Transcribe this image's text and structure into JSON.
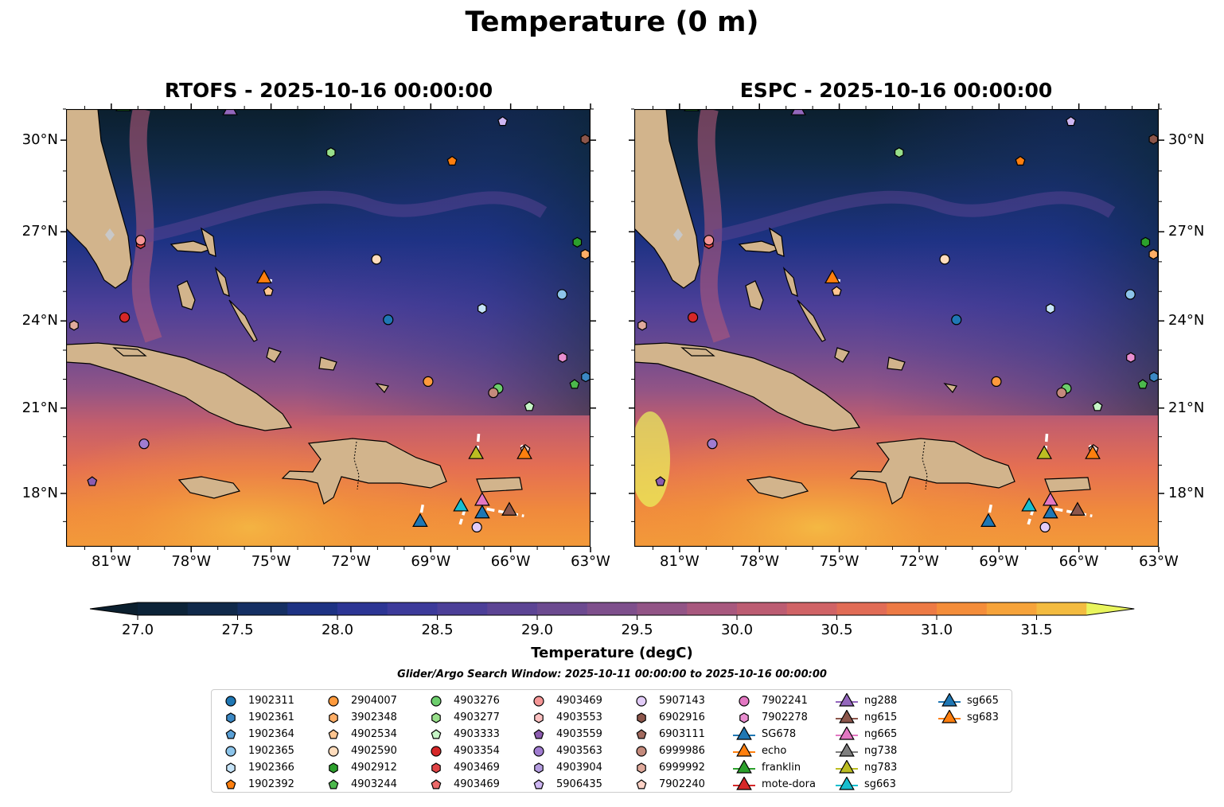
{
  "chart_data": {
    "type": "map-contour",
    "title": "Temperature (0 m)",
    "panels": [
      {
        "title": "RTOFS - 2025-10-16 00:00:00",
        "model": "RTOFS"
      },
      {
        "title": "ESPC - 2025-10-16 00:00:00",
        "model": "ESPC"
      }
    ],
    "lon_range": [
      -82.7,
      -63
    ],
    "lat_range": [
      16.1,
      31.0
    ],
    "x_ticks": [
      "81°W",
      "78°W",
      "75°W",
      "72°W",
      "69°W",
      "66°W",
      "63°W"
    ],
    "x_tick_values": [
      -81,
      -78,
      -75,
      -72,
      -69,
      -66,
      -63
    ],
    "y_ticks": [
      "30°N",
      "27°N",
      "24°N",
      "21°N",
      "18°N"
    ],
    "y_tick_values": [
      30,
      27,
      24,
      21,
      18
    ],
    "colorbar": {
      "label": "Temperature (degC)",
      "range": [
        27.0,
        31.75
      ],
      "step": 0.25,
      "extend": "both",
      "ticks": [
        "27.0",
        "27.5",
        "28.0",
        "28.5",
        "29.0",
        "29.5",
        "30.0",
        "30.5",
        "31.0",
        "31.5"
      ],
      "tick_values": [
        27.0,
        27.5,
        28.0,
        28.5,
        29.0,
        29.5,
        30.0,
        30.5,
        31.0,
        31.5
      ],
      "colors": [
        "#0b1f2e",
        "#0c2338",
        "#10294a",
        "#152f63",
        "#1d3283",
        "#2c3594",
        "#3c3a9a",
        "#4c3f98",
        "#5c4494",
        "#6c4a90",
        "#7e4f8c",
        "#925486",
        "#a8587e",
        "#bc5c72",
        "#d06366",
        "#e16c56",
        "#ed7a45",
        "#f48d3a",
        "#f6a33a",
        "#f3bb40",
        "#e9f55d"
      ]
    },
    "search_window": "Glider/Argo Search Window: 2025-10-11 00:00:00 to 2025-10-16 00:00:00",
    "legend": [
      {
        "label": "1902311",
        "shape": "circle",
        "color": "#1f77b4"
      },
      {
        "label": "1902361",
        "shape": "hexagon",
        "color": "#3b88c4"
      },
      {
        "label": "1902364",
        "shape": "pentagon",
        "color": "#5aa0d6"
      },
      {
        "label": "1902365",
        "shape": "circle",
        "color": "#8cc4ea"
      },
      {
        "label": "1902366",
        "shape": "hexagon",
        "color": "#c6e4f8"
      },
      {
        "label": "1902392",
        "shape": "pentagon",
        "color": "#ff7f0e"
      },
      {
        "label": "2904007",
        "shape": "circle",
        "color": "#ff9a3c"
      },
      {
        "label": "3902348",
        "shape": "hexagon",
        "color": "#ffae66"
      },
      {
        "label": "4902534",
        "shape": "pentagon",
        "color": "#ffc590"
      },
      {
        "label": "4902590",
        "shape": "circle",
        "color": "#ffdcbc"
      },
      {
        "label": "4902912",
        "shape": "hexagon",
        "color": "#2ca02c"
      },
      {
        "label": "4903244",
        "shape": "pentagon",
        "color": "#4cb84c"
      },
      {
        "label": "4903276",
        "shape": "circle",
        "color": "#6cce6c"
      },
      {
        "label": "4903277",
        "shape": "hexagon",
        "color": "#98df8a"
      },
      {
        "label": "4903333",
        "shape": "pentagon",
        "color": "#c6f5c6"
      },
      {
        "label": "4903354",
        "shape": "circle",
        "color": "#d62728"
      },
      {
        "label": "4903469",
        "shape": "hexagon",
        "color": "#e04446"
      },
      {
        "label": "4903469",
        "shape": "pentagon",
        "color": "#ec6a6a"
      },
      {
        "label": "4903469",
        "shape": "circle",
        "color": "#f59696"
      },
      {
        "label": "4903553",
        "shape": "hexagon",
        "color": "#fcc0c0"
      },
      {
        "label": "4903559",
        "shape": "pentagon",
        "color": "#8c5cb0"
      },
      {
        "label": "4903563",
        "shape": "circle",
        "color": "#a07cd0"
      },
      {
        "label": "4903904",
        "shape": "hexagon",
        "color": "#b49ce0"
      },
      {
        "label": "5906435",
        "shape": "pentagon",
        "color": "#cdb6f2"
      },
      {
        "label": "5907143",
        "shape": "circle",
        "color": "#e2ccf8"
      },
      {
        "label": "6902916",
        "shape": "hexagon",
        "color": "#8c564b"
      },
      {
        "label": "6903111",
        "shape": "pentagon",
        "color": "#a26a5e"
      },
      {
        "label": "6999986",
        "shape": "circle",
        "color": "#c48a7c"
      },
      {
        "label": "6999992",
        "shape": "hexagon",
        "color": "#e0aa9c"
      },
      {
        "label": "7902240",
        "shape": "pentagon",
        "color": "#fcd2c6"
      },
      {
        "label": "7902241",
        "shape": "circle",
        "color": "#e377c2"
      },
      {
        "label": "7902278",
        "shape": "hexagon",
        "color": "#e98ed0"
      },
      {
        "label": "SG678",
        "shape": "triangle",
        "color": "#1f77b4",
        "line": true
      },
      {
        "label": "echo",
        "shape": "triangle",
        "color": "#ff7f0e",
        "line": true
      },
      {
        "label": "franklin",
        "shape": "triangle",
        "color": "#2ca02c",
        "line": true
      },
      {
        "label": "mote-dora",
        "shape": "triangle",
        "color": "#d62728",
        "line": true
      },
      {
        "label": "ng288",
        "shape": "triangle",
        "color": "#9467bd",
        "line": true
      },
      {
        "label": "ng615",
        "shape": "triangle",
        "color": "#8c564b",
        "line": true
      },
      {
        "label": "ng665",
        "shape": "triangle",
        "color": "#e377c2",
        "line": true
      },
      {
        "label": "ng738",
        "shape": "triangle",
        "color": "#7f7f7f",
        "line": true
      },
      {
        "label": "ng783",
        "shape": "triangle",
        "color": "#bcbd22",
        "line": true
      },
      {
        "label": "sg663",
        "shape": "triangle",
        "color": "#17becf",
        "line": true
      },
      {
        "label": "sg665",
        "shape": "triangle",
        "color": "#1f77b4",
        "line": true
      },
      {
        "label": "sg683",
        "shape": "triangle",
        "color": "#ff7f0e",
        "line": true
      }
    ],
    "markers": [
      {
        "id": "ng288",
        "lon": -76.54,
        "lat": 30.97
      },
      {
        "id": "franklin",
        "lon": -80.55,
        "lat": 31.1
      },
      {
        "id": "6902916",
        "lon": -63.2,
        "lat": 30.03
      },
      {
        "id": "4903277",
        "lon": -72.75,
        "lat": 29.6
      },
      {
        "id": "1902392",
        "lon": -68.2,
        "lat": 29.32
      },
      {
        "id": "5906435",
        "lon": -66.3,
        "lat": 30.6
      },
      {
        "id": "4903469",
        "lon": -79.9,
        "lat": 26.6,
        "shape": "hexagon",
        "color": "#e04446",
        "dy": 1
      },
      {
        "id": "4903469",
        "lon": -79.9,
        "lat": 26.72,
        "shape": "circle",
        "color": "#f59696"
      },
      {
        "id": "4902912",
        "lon": -63.5,
        "lat": 26.65
      },
      {
        "id": "3902348",
        "lon": -63.2,
        "lat": 26.25
      },
      {
        "id": "4902590",
        "lon": -71.04,
        "lat": 26.08
      },
      {
        "id": "echo",
        "lon": -75.26,
        "lat": 25.45
      },
      {
        "id": "4902534",
        "lon": -75.1,
        "lat": 25.0
      },
      {
        "id": "1902365",
        "lon": -64.07,
        "lat": 24.9
      },
      {
        "id": "1902366",
        "lon": -67.07,
        "lat": 24.42
      },
      {
        "id": "4903354",
        "lon": -80.5,
        "lat": 24.12
      },
      {
        "id": "1902311",
        "lon": -70.6,
        "lat": 24.04
      },
      {
        "id": "6999992",
        "lon": -82.4,
        "lat": 23.85
      },
      {
        "id": "7902278",
        "lon": -64.05,
        "lat": 22.75
      },
      {
        "id": "1902361",
        "lon": -63.18,
        "lat": 22.08
      },
      {
        "id": "4903244",
        "lon": -63.6,
        "lat": 21.82
      },
      {
        "id": "2904007",
        "lon": -69.1,
        "lat": 21.92
      },
      {
        "id": "4903276",
        "lon": -66.47,
        "lat": 21.68
      },
      {
        "id": "6999986",
        "lon": -66.65,
        "lat": 21.53
      },
      {
        "id": "4903333",
        "lon": -65.3,
        "lat": 21.05
      },
      {
        "id": "4903563",
        "lon": -79.77,
        "lat": 19.75
      },
      {
        "id": "7902240",
        "lon": -65.45,
        "lat": 19.55
      },
      {
        "id": "ng783",
        "lon": -67.3,
        "lat": 19.4
      },
      {
        "id": "sg683",
        "lon": -65.48,
        "lat": 19.4
      },
      {
        "id": "4903559",
        "lon": -81.72,
        "lat": 18.42
      },
      {
        "id": "sg663",
        "lon": -67.87,
        "lat": 17.55
      },
      {
        "id": "ng665",
        "lon": -67.07,
        "lat": 17.75
      },
      {
        "id": "SG678",
        "lon": -69.4,
        "lat": 17.0
      },
      {
        "id": "sg665",
        "lon": -67.07,
        "lat": 17.3
      },
      {
        "id": "ng615",
        "lon": -66.05,
        "lat": 17.4
      },
      {
        "id": "5907143",
        "lon": -67.27,
        "lat": 16.8
      }
    ],
    "tracks": [
      {
        "id": "ng783",
        "points": [
          [
            -67.2,
            20.1
          ],
          [
            -67.25,
            19.5
          ]
        ]
      },
      {
        "id": "SG678",
        "points": [
          [
            -69.3,
            17.6
          ],
          [
            -69.4,
            17.1
          ]
        ]
      },
      {
        "id": "sg663",
        "points": [
          [
            -67.7,
            17.5
          ],
          [
            -67.9,
            16.9
          ]
        ]
      },
      {
        "id": "ng615",
        "points": [
          [
            -66.9,
            17.45
          ],
          [
            -65.5,
            17.2
          ]
        ]
      },
      {
        "id": "echo",
        "points": [
          [
            -75.26,
            25.4
          ],
          [
            -74.9,
            25.35
          ]
        ]
      },
      {
        "id": "sg683",
        "points": [
          [
            -65.6,
            19.7
          ],
          [
            -65.4,
            19.45
          ]
        ]
      }
    ]
  }
}
